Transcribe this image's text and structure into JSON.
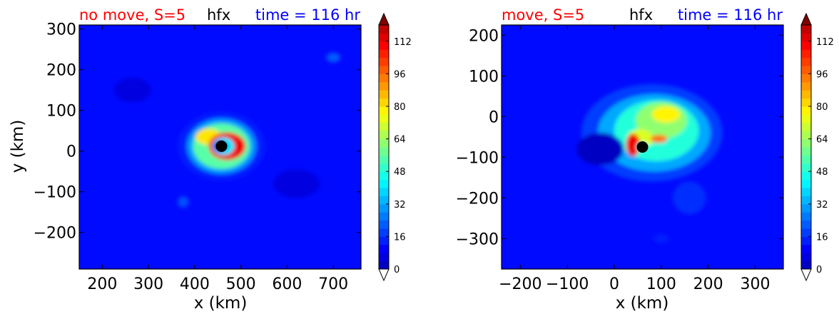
{
  "chart_data": [
    {
      "type": "heatmap",
      "title_left": "no move, S=5",
      "title_center": "hfx",
      "title_right": "time = 116 hr",
      "title_colors": {
        "left": "#ff0000",
        "center": "#000000",
        "right": "#0000ff"
      },
      "xlabel": "x (km)",
      "ylabel": "y (km)",
      "xlim": [
        150,
        760
      ],
      "ylim": [
        -290,
        310
      ],
      "xticks": [
        200,
        300,
        400,
        500,
        600,
        700
      ],
      "yticks": [
        -200,
        -100,
        0,
        100,
        200,
        300
      ],
      "xtick_labels": [
        "200",
        "300",
        "400",
        "500",
        "600",
        "700"
      ],
      "ytick_labels": [
        "−200",
        "−100",
        "0",
        "100",
        "200",
        "300"
      ],
      "center_marker": {
        "x": 458,
        "y": 12
      },
      "colorbar": {
        "min": 0,
        "max": 120,
        "step": 4,
        "tick_values": [
          0,
          16,
          32,
          48,
          64,
          80,
          96,
          112
        ],
        "tick_labels": [
          "0",
          "16",
          "32",
          "48",
          "64",
          "80",
          "96",
          "112"
        ],
        "extend": "both"
      },
      "field_blobs": [
        {
          "x": 458,
          "y": 12,
          "rx": 95,
          "ry": 85,
          "value": 14
        },
        {
          "x": 458,
          "y": 12,
          "rx": 75,
          "ry": 68,
          "value": 30
        },
        {
          "x": 458,
          "y": 12,
          "rx": 62,
          "ry": 56,
          "value": 55
        },
        {
          "x": 430,
          "y": 35,
          "rx": 28,
          "ry": 20,
          "value": 80
        },
        {
          "x": 470,
          "y": 12,
          "rx": 40,
          "ry": 34,
          "value": 112
        },
        {
          "x": 462,
          "y": 12,
          "rx": 24,
          "ry": 22,
          "value": 40
        },
        {
          "x": 455,
          "y": 12,
          "rx": 14,
          "ry": 14,
          "value": 8
        },
        {
          "x": 700,
          "y": 230,
          "rx": 15,
          "ry": 12,
          "value": 22
        },
        {
          "x": 375,
          "y": -125,
          "rx": 12,
          "ry": 14,
          "value": 20
        },
        {
          "x": 265,
          "y": 150,
          "rx": 40,
          "ry": 30,
          "value": 6
        },
        {
          "x": 620,
          "y": -80,
          "rx": 50,
          "ry": 35,
          "value": 6
        }
      ]
    },
    {
      "type": "heatmap",
      "title_left": "move, S=5",
      "title_center": "hfx",
      "title_right": "time = 116 hr",
      "title_colors": {
        "left": "#ff0000",
        "center": "#000000",
        "right": "#0000ff"
      },
      "xlabel": "x (km)",
      "ylabel": "",
      "xlim": [
        -240,
        360
      ],
      "ylim": [
        -375,
        225
      ],
      "xticks": [
        -200,
        -100,
        0,
        100,
        200,
        300
      ],
      "yticks": [
        -300,
        -200,
        -100,
        0,
        100,
        200
      ],
      "xtick_labels": [
        "−200",
        "−100",
        "0",
        "100",
        "200",
        "300"
      ],
      "ytick_labels": [
        "−300",
        "−200",
        "−100",
        "0",
        "100",
        "200"
      ],
      "center_marker": {
        "x": 60,
        "y": -75
      },
      "colorbar": {
        "min": 0,
        "max": 120,
        "step": 4,
        "tick_values": [
          0,
          16,
          32,
          48,
          64,
          80,
          96,
          112
        ],
        "tick_labels": [
          "0",
          "16",
          "32",
          "48",
          "64",
          "80",
          "96",
          "112"
        ],
        "extend": "both"
      },
      "field_blobs": [
        {
          "x": 80,
          "y": -40,
          "rx": 150,
          "ry": 120,
          "value": 18
        },
        {
          "x": 85,
          "y": -40,
          "rx": 120,
          "ry": 95,
          "value": 32
        },
        {
          "x": 90,
          "y": -35,
          "rx": 90,
          "ry": 75,
          "value": 48
        },
        {
          "x": 100,
          "y": -10,
          "rx": 55,
          "ry": 45,
          "value": 62
        },
        {
          "x": 110,
          "y": 5,
          "rx": 30,
          "ry": 20,
          "value": 78
        },
        {
          "x": 55,
          "y": -55,
          "rx": 28,
          "ry": 24,
          "value": 72
        },
        {
          "x": 40,
          "y": -70,
          "rx": 15,
          "ry": 28,
          "value": 112
        },
        {
          "x": 95,
          "y": -55,
          "rx": 18,
          "ry": 10,
          "value": 95
        },
        {
          "x": 60,
          "y": -75,
          "rx": 12,
          "ry": 12,
          "value": 45
        },
        {
          "x": 160,
          "y": -200,
          "rx": 35,
          "ry": 40,
          "value": 16
        },
        {
          "x": 100,
          "y": -300,
          "rx": 18,
          "ry": 12,
          "value": 14
        },
        {
          "x": -30,
          "y": -80,
          "rx": 50,
          "ry": 40,
          "value": 2
        }
      ]
    }
  ]
}
